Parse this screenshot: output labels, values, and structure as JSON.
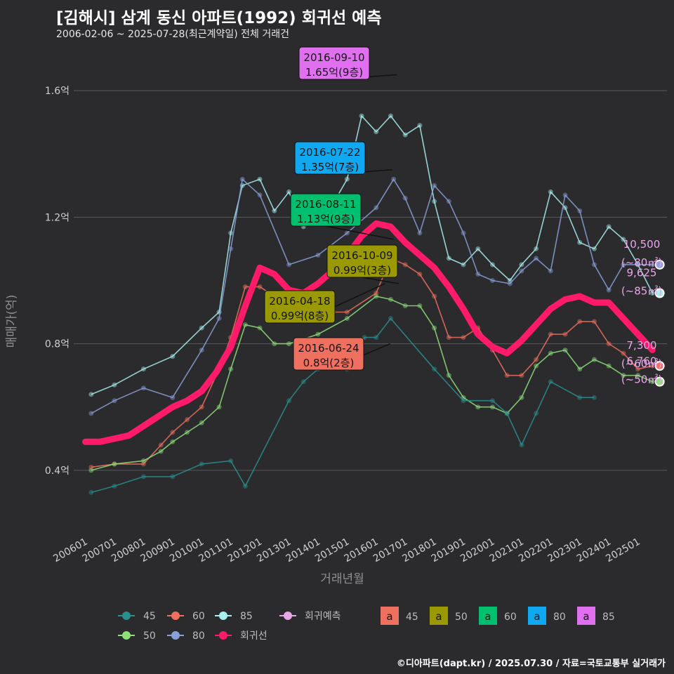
{
  "header": {
    "title": "[김해시] 삼계 동신 아파트(1992) 회귀선 예측",
    "subtitle": "2006-02-06 ~ 2025-07-28(최근계약일) 전체 거래건"
  },
  "footer": {
    "credit": "©디아파트(dapt.kr) / 2025.07.30 / 자료=국토교통부 실거래가"
  },
  "colors": {
    "s45": "#2a8f8f",
    "s50": "#8fe07a",
    "s60": "#f07060",
    "s80": "#8aa0d8",
    "s85": "#a8f0f0",
    "trend": "#ff1a6a",
    "predict": "#e8a8e8"
  },
  "chart_data": {
    "type": "line",
    "xlabel": "거래년월",
    "ylabel": "매매가(억)",
    "ylim": [
      0.2,
      1.72
    ],
    "x_range": [
      "2006-01",
      "2025-12"
    ],
    "x_ticks": [
      "200601",
      "200701",
      "200801",
      "200901",
      "201001",
      "201101",
      "201201",
      "201301",
      "201401",
      "201501",
      "201601",
      "201701",
      "201801",
      "201901",
      "202001",
      "202101",
      "202201",
      "202301",
      "202401",
      "202501"
    ],
    "y_ticks": [
      {
        "v": 0.4,
        "label": "0.4억"
      },
      {
        "v": 0.8,
        "label": "0.8억"
      },
      {
        "v": 1.2,
        "label": "1.2억"
      },
      {
        "v": 1.6,
        "label": "1.6억"
      }
    ],
    "series": [
      {
        "name": "85",
        "key": "s85",
        "points": [
          [
            2006.2,
            0.64
          ],
          [
            2007.0,
            0.67
          ],
          [
            2008.0,
            0.72
          ],
          [
            2009.0,
            0.76
          ],
          [
            2010.0,
            0.85
          ],
          [
            2010.6,
            0.9
          ],
          [
            2011.0,
            1.15
          ],
          [
            2011.4,
            1.3
          ],
          [
            2012.0,
            1.32
          ],
          [
            2012.5,
            1.22
          ],
          [
            2013.0,
            1.28
          ],
          [
            2013.5,
            1.17
          ],
          [
            2014.0,
            1.2
          ],
          [
            2014.5,
            1.24
          ],
          [
            2015.0,
            1.32
          ],
          [
            2015.5,
            1.52
          ],
          [
            2016.0,
            1.47
          ],
          [
            2016.5,
            1.52
          ],
          [
            2017.0,
            1.46
          ],
          [
            2017.5,
            1.49
          ],
          [
            2018.0,
            1.25
          ],
          [
            2018.5,
            1.07
          ],
          [
            2019.0,
            1.05
          ],
          [
            2019.5,
            1.1
          ],
          [
            2020.0,
            1.05
          ],
          [
            2020.6,
            1.0
          ],
          [
            2021.0,
            1.05
          ],
          [
            2021.5,
            1.1
          ],
          [
            2022.0,
            1.28
          ],
          [
            2022.5,
            1.23
          ],
          [
            2023.0,
            1.12
          ],
          [
            2023.5,
            1.1
          ],
          [
            2024.0,
            1.17
          ],
          [
            2024.5,
            1.13
          ],
          [
            2025.0,
            1.05
          ],
          [
            2025.5,
            0.96
          ]
        ]
      },
      {
        "name": "80",
        "key": "s80",
        "points": [
          [
            2006.2,
            0.58
          ],
          [
            2007.0,
            0.62
          ],
          [
            2008.0,
            0.66
          ],
          [
            2009.0,
            0.63
          ],
          [
            2010.0,
            0.78
          ],
          [
            2010.6,
            0.88
          ],
          [
            2011.0,
            1.1
          ],
          [
            2011.4,
            1.32
          ],
          [
            2012.0,
            1.27
          ],
          [
            2013.0,
            1.05
          ],
          [
            2014.0,
            1.08
          ],
          [
            2015.0,
            1.15
          ],
          [
            2016.0,
            1.23
          ],
          [
            2016.6,
            1.32
          ],
          [
            2017.0,
            1.26
          ],
          [
            2017.5,
            1.15
          ],
          [
            2018.0,
            1.3
          ],
          [
            2018.5,
            1.25
          ],
          [
            2019.0,
            1.15
          ],
          [
            2019.5,
            1.02
          ],
          [
            2020.0,
            1.0
          ],
          [
            2020.6,
            0.99
          ],
          [
            2021.0,
            1.03
          ],
          [
            2021.5,
            1.07
          ],
          [
            2022.0,
            1.03
          ],
          [
            2022.5,
            1.27
          ],
          [
            2023.0,
            1.22
          ],
          [
            2023.5,
            1.05
          ],
          [
            2024.0,
            0.97
          ],
          [
            2024.5,
            1.05
          ],
          [
            2025.0,
            1.05
          ],
          [
            2025.5,
            1.05
          ]
        ]
      },
      {
        "name": "60",
        "key": "s60",
        "points": [
          [
            2006.2,
            0.41
          ],
          [
            2007.0,
            0.42
          ],
          [
            2008.0,
            0.42
          ],
          [
            2008.6,
            0.48
          ],
          [
            2009.0,
            0.52
          ],
          [
            2009.5,
            0.56
          ],
          [
            2010.0,
            0.6
          ],
          [
            2010.6,
            0.72
          ],
          [
            2011.0,
            0.82
          ],
          [
            2011.5,
            0.98
          ],
          [
            2012.0,
            0.98
          ],
          [
            2012.5,
            0.95
          ],
          [
            2013.0,
            0.96
          ],
          [
            2014.0,
            0.9
          ],
          [
            2015.0,
            0.9
          ],
          [
            2016.0,
            0.96
          ],
          [
            2016.5,
            1.07
          ],
          [
            2017.0,
            1.05
          ],
          [
            2017.5,
            1.02
          ],
          [
            2018.0,
            0.95
          ],
          [
            2018.5,
            0.82
          ],
          [
            2019.0,
            0.82
          ],
          [
            2019.5,
            0.85
          ],
          [
            2020.0,
            0.78
          ],
          [
            2020.5,
            0.7
          ],
          [
            2021.0,
            0.7
          ],
          [
            2021.5,
            0.75
          ],
          [
            2022.0,
            0.83
          ],
          [
            2022.5,
            0.83
          ],
          [
            2023.0,
            0.87
          ],
          [
            2023.5,
            0.87
          ],
          [
            2024.0,
            0.8
          ],
          [
            2024.5,
            0.77
          ],
          [
            2025.0,
            0.72
          ],
          [
            2025.5,
            0.73
          ]
        ]
      },
      {
        "name": "50",
        "key": "s50",
        "points": [
          [
            2006.2,
            0.4
          ],
          [
            2007.0,
            0.42
          ],
          [
            2008.0,
            0.43
          ],
          [
            2008.6,
            0.46
          ],
          [
            2009.0,
            0.49
          ],
          [
            2009.5,
            0.52
          ],
          [
            2010.0,
            0.55
          ],
          [
            2010.6,
            0.6
          ],
          [
            2011.0,
            0.72
          ],
          [
            2011.5,
            0.86
          ],
          [
            2012.0,
            0.85
          ],
          [
            2012.5,
            0.8
          ],
          [
            2013.0,
            0.8
          ],
          [
            2014.0,
            0.83
          ],
          [
            2015.0,
            0.88
          ],
          [
            2016.0,
            0.95
          ],
          [
            2016.5,
            0.94
          ],
          [
            2017.0,
            0.92
          ],
          [
            2017.5,
            0.92
          ],
          [
            2018.0,
            0.85
          ],
          [
            2018.5,
            0.7
          ],
          [
            2019.0,
            0.63
          ],
          [
            2019.5,
            0.6
          ],
          [
            2020.0,
            0.6
          ],
          [
            2020.5,
            0.58
          ],
          [
            2021.0,
            0.63
          ],
          [
            2021.5,
            0.73
          ],
          [
            2022.0,
            0.77
          ],
          [
            2022.5,
            0.78
          ],
          [
            2023.0,
            0.72
          ],
          [
            2023.5,
            0.75
          ],
          [
            2024.0,
            0.73
          ],
          [
            2024.5,
            0.7
          ],
          [
            2025.0,
            0.7
          ],
          [
            2025.5,
            0.68
          ]
        ]
      },
      {
        "name": "45",
        "key": "s45",
        "points": [
          [
            2006.2,
            0.33
          ],
          [
            2007.0,
            0.35
          ],
          [
            2008.0,
            0.38
          ],
          [
            2009.0,
            0.38
          ],
          [
            2010.0,
            0.42
          ],
          [
            2011.0,
            0.43
          ],
          [
            2011.5,
            0.35
          ],
          [
            2013.0,
            0.62
          ],
          [
            2013.5,
            0.68
          ],
          [
            2014.0,
            0.72
          ],
          [
            2015.0,
            0.72
          ],
          [
            2015.6,
            0.82
          ],
          [
            2016.0,
            0.82
          ],
          [
            2016.5,
            0.88
          ],
          [
            2018.0,
            0.72
          ],
          [
            2019.0,
            0.62
          ],
          [
            2020.0,
            0.62
          ],
          [
            2020.5,
            0.58
          ],
          [
            2021.0,
            0.48
          ],
          [
            2021.5,
            0.58
          ],
          [
            2022.0,
            0.68
          ],
          [
            2023.0,
            0.63
          ],
          [
            2023.5,
            0.63
          ]
        ]
      }
    ],
    "trend": {
      "name": "회귀선",
      "key": "trend",
      "points": [
        [
          2006.0,
          0.49
        ],
        [
          2006.5,
          0.49
        ],
        [
          2007.0,
          0.5
        ],
        [
          2007.5,
          0.51
        ],
        [
          2008.0,
          0.54
        ],
        [
          2008.5,
          0.57
        ],
        [
          2009.0,
          0.6
        ],
        [
          2009.5,
          0.62
        ],
        [
          2010.0,
          0.65
        ],
        [
          2010.5,
          0.71
        ],
        [
          2011.0,
          0.79
        ],
        [
          2011.5,
          0.92
        ],
        [
          2012.0,
          1.04
        ],
        [
          2012.5,
          1.02
        ],
        [
          2013.0,
          0.97
        ],
        [
          2013.5,
          0.96
        ],
        [
          2014.0,
          0.99
        ],
        [
          2014.5,
          1.03
        ],
        [
          2015.0,
          1.08
        ],
        [
          2015.5,
          1.14
        ],
        [
          2016.0,
          1.18
        ],
        [
          2016.5,
          1.17
        ],
        [
          2017.0,
          1.12
        ],
        [
          2017.5,
          1.08
        ],
        [
          2018.0,
          1.04
        ],
        [
          2018.5,
          0.98
        ],
        [
          2019.0,
          0.91
        ],
        [
          2019.5,
          0.83
        ],
        [
          2020.0,
          0.79
        ],
        [
          2020.5,
          0.77
        ],
        [
          2021.0,
          0.81
        ],
        [
          2021.5,
          0.86
        ],
        [
          2022.0,
          0.91
        ],
        [
          2022.5,
          0.94
        ],
        [
          2023.0,
          0.95
        ],
        [
          2023.5,
          0.93
        ],
        [
          2024.0,
          0.93
        ],
        [
          2024.5,
          0.88
        ],
        [
          2025.0,
          0.83
        ],
        [
          2025.5,
          0.78
        ]
      ]
    },
    "predictions": [
      {
        "key": "s80",
        "x": 2025.75,
        "y": 1.05,
        "value": "10,500",
        "size": "(~80㎡)"
      },
      {
        "key": "s85",
        "x": 2025.75,
        "y": 0.96,
        "value": "9,625",
        "size": "(~85㎡)"
      },
      {
        "key": "s60",
        "x": 2025.75,
        "y": 0.73,
        "value": "7,300",
        "size": "(~60㎡)"
      },
      {
        "key": "s50",
        "x": 2025.75,
        "y": 0.68,
        "value": "6,760",
        "size": "(~50㎡)"
      }
    ],
    "annotations": [
      {
        "date": "2016-09-10",
        "price": "1.65억(9층)",
        "key": "s85",
        "x": 2016.7,
        "y": 1.65
      },
      {
        "date": "2016-07-22",
        "price": "1.35억(7층)",
        "key": "s80",
        "x": 2016.55,
        "y": 1.35
      },
      {
        "date": "2016-08-11",
        "price": "1.13억(9층)",
        "key": "s60",
        "x": 2016.6,
        "y": 1.13
      },
      {
        "date": "2016-10-09",
        "price": "0.99억(3층)",
        "key": "s50",
        "x": 2016.77,
        "y": 0.99
      },
      {
        "date": "2016-04-18",
        "price": "0.99억(8층)",
        "key": "s50",
        "x": 2016.3,
        "y": 0.99
      },
      {
        "date": "2016-06-24",
        "price": "0.8억(2층)",
        "key": "s60",
        "x": 2016.48,
        "y": 0.8
      }
    ],
    "legend_lines": [
      {
        "key": "s45",
        "label": "45"
      },
      {
        "key": "s60",
        "label": "60"
      },
      {
        "key": "s85",
        "label": "85"
      },
      {
        "key": "predict",
        "label": "회귀예측"
      },
      {
        "key": "s50",
        "label": "50"
      },
      {
        "key": "s80",
        "label": "80"
      },
      {
        "key": "trend",
        "label": "회귀선"
      }
    ],
    "legend_boxes": [
      {
        "key": "s60",
        "label": "45",
        "glyph": "a"
      },
      {
        "key": "olive",
        "label": "50",
        "glyph": "a"
      },
      {
        "key": "green",
        "label": "60",
        "glyph": "a"
      },
      {
        "key": "blue",
        "label": "80",
        "glyph": "a"
      },
      {
        "key": "violet",
        "label": "85",
        "glyph": "a"
      }
    ],
    "box_colors": {
      "olive": "#9a9a00",
      "green": "#00c070",
      "blue": "#10a8f0",
      "violet": "#e070f0"
    }
  }
}
